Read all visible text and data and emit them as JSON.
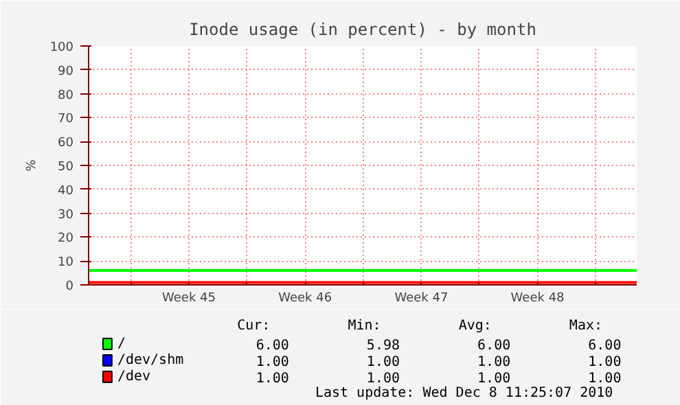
{
  "chart_data": {
    "type": "line",
    "title": "Inode usage (in percent) - by month",
    "ylabel": "%",
    "x": [
      "2010-11-05T11:00",
      "2010-12-08T11:25"
    ],
    "xlim": [
      "2010-11-05T11:00",
      "2010-12-08T11:25"
    ],
    "xticks": [
      {
        "value": "2010-11-08T00:00",
        "label": null
      },
      {
        "value": "2010-11-11T12:00",
        "label": "Week 45"
      },
      {
        "value": "2010-11-15T00:00",
        "label": null
      },
      {
        "value": "2010-11-18T12:00",
        "label": "Week 46"
      },
      {
        "value": "2010-11-22T00:00",
        "label": null
      },
      {
        "value": "2010-11-25T12:00",
        "label": "Week 47"
      },
      {
        "value": "2010-11-29T00:00",
        "label": null
      },
      {
        "value": "2010-12-02T12:00",
        "label": "Week 48"
      },
      {
        "value": "2010-12-06T00:00",
        "label": null
      }
    ],
    "ylim": [
      0,
      100
    ],
    "yticks": [
      0,
      10,
      20,
      30,
      40,
      50,
      60,
      70,
      80,
      90,
      100
    ],
    "grid": true,
    "legend": "bottom",
    "series": [
      {
        "name": "/",
        "color": "#00ff00",
        "values": [
          6,
          6
        ]
      },
      {
        "name": "/dev/shm",
        "color": "#0000ff",
        "values": [
          null,
          null
        ]
      },
      {
        "name": "/dev",
        "color": "#ff0000",
        "values": [
          1,
          1
        ]
      }
    ],
    "annotations": [
      "Cur:",
      "Min:",
      "Avg:",
      "Max:",
      "6.00",
      "5.98",
      "6.00",
      "6.00",
      "1.00",
      "1.00",
      "1.00",
      "1.00",
      "1.00",
      "1.00",
      "1.00",
      "1.00",
      "Last update: Wed Dec  8 11:25:07 2010"
    ]
  }
}
